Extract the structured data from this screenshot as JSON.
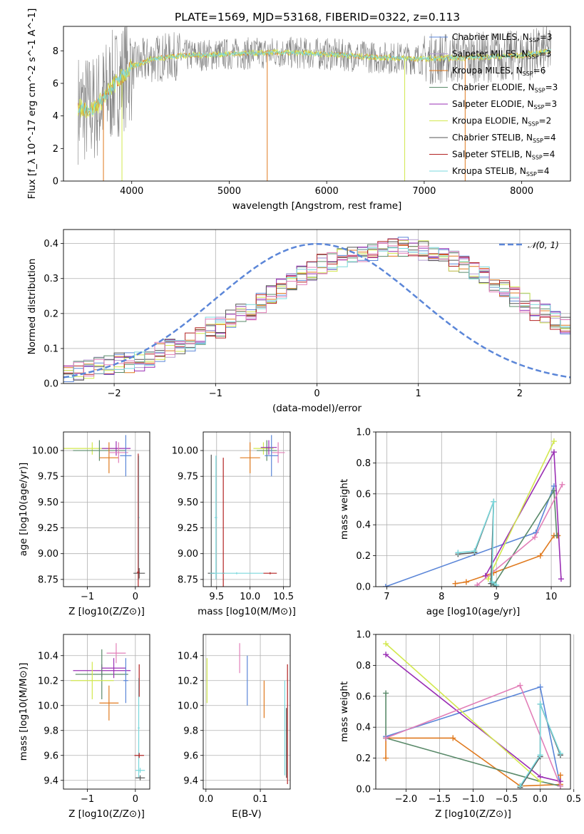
{
  "title": "PLATE=1569, MJD=53168, FIBERID=0322, z=0.113",
  "colors": {
    "chabrier_miles": "#5b86d8",
    "salpeter_miles": "#b59fd0",
    "kroupa_miles": "#e07a1f",
    "chabrier_elodie": "#5a8a6a",
    "salpeter_elodie": "#9a2fb4",
    "kroupa_elodie": "#d2e84e",
    "chabrier_stelib": "#555555",
    "salpeter_stelib": "#b22222",
    "kroupa_stelib": "#7ad8dc",
    "data": "#808080",
    "pink": "#e27fb8",
    "grid": "#b0b0b0"
  },
  "chart_data": [
    {
      "id": "spectrum",
      "type": "line",
      "title": "PLATE=1569, MJD=53168, FIBERID=0322, z=0.113",
      "xlabel": "wavelength [Angstrom, rest frame]",
      "ylabel": "Flux [f_λ 10^-17 erg cm^-2 s^-1 A^-1]",
      "xlim": [
        3300,
        8500
      ],
      "ylim": [
        0,
        9.5
      ],
      "xticks": [
        "4000",
        "5000",
        "6000",
        "7000",
        "8000"
      ],
      "yticks": [
        "0",
        "2",
        "4",
        "6",
        "8"
      ],
      "grid": false,
      "legend_position": "top-right",
      "legend": [
        "Chabrier MILES, N_SSP=3",
        "Salpeter MILES, N_SSP=3",
        "Kroupa MILES, N_SSP=6",
        "Chabrier ELODIE, N_SSP=3",
        "Salpeter ELODIE, N_SSP=3",
        "Kroupa ELODIE, N_SSP=2",
        "Chabrier STELIB, N_SSP=4",
        "Salpeter STELIB, N_SSP=4",
        "Kroupa STELIB, N_SSP=4"
      ],
      "data_series": {
        "x": [
          3450,
          3600,
          3700,
          3800,
          3900,
          4000,
          4200,
          4500,
          5000,
          5500,
          6000,
          6500,
          7000,
          7500,
          8000,
          8300
        ],
        "y": [
          4.5,
          4.4,
          5.0,
          5.8,
          6.4,
          7.0,
          7.5,
          7.7,
          7.8,
          7.9,
          7.8,
          7.6,
          7.5,
          7.6,
          7.7,
          8.0
        ]
      }
    },
    {
      "id": "residuals",
      "type": "histogram",
      "xlabel": "(data-model)/error",
      "ylabel": "Normed distribution",
      "xlim": [
        -2.5,
        2.5
      ],
      "ylim": [
        0,
        0.44
      ],
      "xticks": [
        "−2",
        "−1",
        "0",
        "1",
        "2"
      ],
      "yticks": [
        "0.0",
        "0.1",
        "0.2",
        "0.3",
        "0.4"
      ],
      "grid": true,
      "legend": [
        "𝒩(0, 1)"
      ],
      "legend_position": "top-right",
      "bin_edges_start": -2.5,
      "bin_width": 0.1,
      "base_histogram": [
        0.03,
        0.035,
        0.04,
        0.05,
        0.055,
        0.06,
        0.06,
        0.065,
        0.075,
        0.09,
        0.1,
        0.11,
        0.12,
        0.14,
        0.16,
        0.16,
        0.18,
        0.2,
        0.21,
        0.23,
        0.25,
        0.27,
        0.29,
        0.31,
        0.32,
        0.34,
        0.35,
        0.36,
        0.37,
        0.375,
        0.38,
        0.38,
        0.385,
        0.39,
        0.39,
        0.38,
        0.37,
        0.36,
        0.35,
        0.34,
        0.32,
        0.31,
        0.29,
        0.27,
        0.25,
        0.23,
        0.21,
        0.2,
        0.18,
        0.16,
        0.15
      ]
    },
    {
      "id": "age_vs_Z",
      "type": "scatter",
      "xlabel": "Z [log10(Z/Z⊙)]",
      "ylabel": "age [log10(age/yr)]",
      "xlim": [
        -1.5,
        0.3
      ],
      "ylim": [
        8.68,
        10.18
      ],
      "xticks": [
        "−1",
        "0"
      ],
      "yticks": [
        "8.75",
        "9.00",
        "9.25",
        "9.50",
        "9.75",
        "10.00"
      ],
      "grid": true,
      "points": [
        {
          "x": -0.9,
          "y": 10.02,
          "xerr": 0.6,
          "yerr": 0.06,
          "c": "kroupa_elodie"
        },
        {
          "x": -0.75,
          "y": 10.0,
          "xerr": 0.55,
          "yerr": 0.1,
          "c": "chabrier_elodie"
        },
        {
          "x": -0.4,
          "y": 10.02,
          "xerr": 0.3,
          "yerr": 0.07,
          "c": "salpeter_elodie"
        },
        {
          "x": -0.55,
          "y": 9.93,
          "xerr": 0.2,
          "yerr": 0.15,
          "c": "kroupa_miles"
        },
        {
          "x": -0.35,
          "y": 9.98,
          "xerr": 0.2,
          "yerr": 0.1,
          "c": "pink"
        },
        {
          "x": -0.2,
          "y": 9.95,
          "xerr": 0.12,
          "yerr": 0.2,
          "c": "chabrier_miles"
        },
        {
          "x": 0.07,
          "y": 9.35,
          "xerr": 0.02,
          "yerr": 0.6,
          "c": "kroupa_stelib"
        },
        {
          "x": 0.08,
          "y": 8.81,
          "xerr": 0.12,
          "yerr": 0.05,
          "c": "chabrier_stelib"
        },
        {
          "x": 0.06,
          "y": 8.82,
          "xerr": 0.03,
          "yerr": 1.15,
          "c": "salpeter_stelib"
        }
      ]
    },
    {
      "id": "age_vs_mass",
      "type": "scatter",
      "xlabel": "mass [log10(M/M⊙)]",
      "ylabel": "",
      "xlim": [
        9.3,
        10.6
      ],
      "ylim": [
        8.68,
        10.18
      ],
      "xticks": [
        "9.5",
        "10.0",
        "10.5"
      ],
      "yticks": [
        "8.75",
        "9.00",
        "9.25",
        "9.50",
        "9.75",
        "10.00"
      ],
      "grid": true,
      "points": [
        {
          "x": 10.2,
          "y": 10.02,
          "xerr": 0.15,
          "yerr": 0.06,
          "c": "kroupa_elodie"
        },
        {
          "x": 10.25,
          "y": 10.0,
          "xerr": 0.15,
          "yerr": 0.1,
          "c": "chabrier_elodie"
        },
        {
          "x": 10.28,
          "y": 10.03,
          "xerr": 0.12,
          "yerr": 0.07,
          "c": "salpeter_elodie"
        },
        {
          "x": 10.0,
          "y": 9.93,
          "xerr": 0.15,
          "yerr": 0.15,
          "c": "kroupa_miles"
        },
        {
          "x": 10.42,
          "y": 9.98,
          "xerr": 0.1,
          "yerr": 0.1,
          "c": "pink"
        },
        {
          "x": 10.32,
          "y": 9.95,
          "xerr": 0.1,
          "yerr": 0.2,
          "c": "chabrier_miles"
        },
        {
          "x": 9.49,
          "y": 9.35,
          "xerr": 0.02,
          "yerr": 0.6,
          "c": "kroupa_stelib"
        },
        {
          "x": 9.42,
          "y": 8.81,
          "xerr": 0.05,
          "yerr": 1.15,
          "c": "chabrier_stelib"
        },
        {
          "x": 9.6,
          "y": 8.81,
          "xerr": 0.02,
          "yerr": 1.12,
          "c": "salpeter_stelib"
        },
        {
          "x": 9.8,
          "y": 8.81,
          "xerr": 0.4,
          "yerr": 0.01,
          "c": "kroupa_stelib"
        },
        {
          "x": 10.3,
          "y": 8.81,
          "xerr": 0.1,
          "yerr": 0.01,
          "c": "salpeter_stelib"
        }
      ]
    },
    {
      "id": "weight_vs_age",
      "type": "line",
      "xlabel": "age [log10(age/yr)]",
      "ylabel": "mass weight",
      "xlim": [
        6.8,
        10.35
      ],
      "ylim": [
        0,
        1.0
      ],
      "xticks": [
        "7",
        "8",
        "9",
        "10"
      ],
      "yticks": [
        "0.0",
        "0.2",
        "0.4",
        "0.6",
        "0.8",
        "1.0"
      ],
      "grid": true,
      "series": [
        {
          "c": "chabrier_miles",
          "x": [
            6.98,
            9.72,
            10.05
          ],
          "y": [
            0.0,
            0.35,
            0.65
          ]
        },
        {
          "c": "kroupa_miles",
          "x": [
            8.25,
            8.45,
            8.95,
            9.8,
            10.05,
            10.12
          ],
          "y": [
            0.02,
            0.03,
            0.09,
            0.2,
            0.33,
            0.33
          ]
        },
        {
          "c": "chabrier_elodie",
          "x": [
            8.95,
            10.05,
            10.1
          ],
          "y": [
            0.01,
            0.62,
            0.33
          ]
        },
        {
          "c": "salpeter_elodie",
          "x": [
            8.8,
            10.05,
            10.18
          ],
          "y": [
            0.07,
            0.87,
            0.05
          ]
        },
        {
          "c": "kroupa_elodie",
          "x": [
            8.85,
            10.05
          ],
          "y": [
            0.05,
            0.94
          ]
        },
        {
          "c": "pink",
          "x": [
            8.65,
            9.7,
            10.2
          ],
          "y": [
            0.01,
            0.32,
            0.66
          ]
        },
        {
          "c": "chabrier_stelib",
          "x": [
            8.3,
            8.6,
            8.95,
            8.9,
            9.0
          ],
          "y": [
            0.21,
            0.22,
            0.55,
            0.02,
            0.0
          ]
        },
        {
          "c": "kroupa_stelib",
          "x": [
            8.3,
            8.6,
            8.95,
            8.92,
            9.0
          ],
          "y": [
            0.22,
            0.23,
            0.55,
            0.03,
            0.01
          ]
        }
      ]
    },
    {
      "id": "mass_vs_Z",
      "type": "scatter",
      "xlabel": "Z [log10(Z/Z⊙)]",
      "ylabel": "mass [log10(M/M⊙)]",
      "xlim": [
        -1.5,
        0.3
      ],
      "ylim": [
        9.33,
        10.57
      ],
      "xticks": [
        "−1",
        "0"
      ],
      "yticks": [
        "9.4",
        "9.6",
        "9.8",
        "10.0",
        "10.2",
        "10.4"
      ],
      "grid": true,
      "points": [
        {
          "x": -0.7,
          "y": 10.28,
          "xerr": 0.6,
          "yerr": 0.05,
          "c": "salpeter_elodie"
        },
        {
          "x": -0.7,
          "y": 10.25,
          "xerr": 0.55,
          "yerr": 0.2,
          "c": "chabrier_elodie"
        },
        {
          "x": -0.9,
          "y": 10.2,
          "xerr": 0.45,
          "yerr": 0.15,
          "c": "kroupa_elodie"
        },
        {
          "x": -0.4,
          "y": 10.42,
          "xerr": 0.2,
          "yerr": 0.08,
          "c": "pink"
        },
        {
          "x": -0.45,
          "y": 10.3,
          "xerr": 0.25,
          "yerr": 0.08,
          "c": "salpeter_elodie"
        },
        {
          "x": -0.55,
          "y": 10.02,
          "xerr": 0.2,
          "yerr": 0.14,
          "c": "kroupa_miles"
        },
        {
          "x": -0.2,
          "y": 10.2,
          "xerr": 0.05,
          "yerr": 0.18,
          "c": "chabrier_miles"
        },
        {
          "x": 0.07,
          "y": 9.82,
          "xerr": 0.02,
          "yerr": 0.4,
          "c": "kroupa_stelib"
        },
        {
          "x": 0.08,
          "y": 9.6,
          "xerr": 0.1,
          "yerr": 0.02,
          "c": "salpeter_stelib"
        },
        {
          "x": 0.1,
          "y": 9.48,
          "xerr": 0.1,
          "yerr": 0.02,
          "c": "kroupa_stelib"
        },
        {
          "x": 0.1,
          "y": 9.42,
          "xerr": 0.1,
          "yerr": 0.02,
          "c": "chabrier_stelib"
        },
        {
          "x": 0.08,
          "y": 10.2,
          "xerr": 0.0,
          "yerr": 0.13,
          "c": "salpeter_stelib"
        }
      ]
    },
    {
      "id": "mass_vs_ebv",
      "type": "scatter",
      "xlabel": "E(B-V)",
      "ylabel": "",
      "xlim": [
        -0.005,
        0.155
      ],
      "ylim": [
        9.33,
        10.57
      ],
      "xticks": [
        "0.0",
        "0.1"
      ],
      "yticks": [
        "9.4",
        "9.6",
        "9.8",
        "10.0",
        "10.2",
        "10.4"
      ],
      "grid": true,
      "points": [
        {
          "x": 0.002,
          "y": 10.2,
          "yerr": 0.18,
          "c": "kroupa_elodie"
        },
        {
          "x": 0.062,
          "y": 10.38,
          "yerr": 0.12,
          "c": "pink"
        },
        {
          "x": 0.076,
          "y": 10.2,
          "yerr": 0.2,
          "c": "chabrier_miles"
        },
        {
          "x": 0.107,
          "y": 10.05,
          "yerr": 0.15,
          "c": "kroupa_miles"
        },
        {
          "x": 0.145,
          "y": 9.82,
          "yerr": 0.38,
          "c": "kroupa_stelib"
        },
        {
          "x": 0.15,
          "y": 9.85,
          "yerr": 0.48,
          "c": "salpeter_stelib"
        },
        {
          "x": 0.148,
          "y": 9.7,
          "yerr": 0.28,
          "c": "chabrier_stelib"
        }
      ]
    },
    {
      "id": "weight_vs_Z",
      "type": "line",
      "xlabel": "Z [log10(Z/Z⊙)]",
      "ylabel": "mass weight",
      "xlim": [
        -2.45,
        0.45
      ],
      "ylim": [
        0,
        1.0
      ],
      "xticks": [
        "−2.0",
        "−1.5",
        "−1.0",
        "−0.5",
        "0.0",
        "0.5"
      ],
      "yticks": [
        "0.0",
        "0.2",
        "0.4",
        "0.6",
        "0.8",
        "1.0"
      ],
      "grid": true,
      "series": [
        {
          "c": "chabrier_miles",
          "x": [
            -2.3,
            0.0,
            0.3
          ],
          "y": [
            0.34,
            0.66,
            0.02
          ]
        },
        {
          "c": "kroupa_miles",
          "x": [
            -2.3,
            -2.3,
            -1.3,
            -0.3,
            0.3,
            0.3
          ],
          "y": [
            0.2,
            0.33,
            0.33,
            0.02,
            0.03,
            0.09
          ]
        },
        {
          "c": "chabrier_elodie",
          "x": [
            -2.3,
            -2.3,
            -2.3,
            0.0,
            0.3
          ],
          "y": [
            0.62,
            0.33,
            0.33,
            0.05,
            0.02
          ]
        },
        {
          "c": "salpeter_elodie",
          "x": [
            -2.3,
            0.0,
            0.3
          ],
          "y": [
            0.87,
            0.08,
            0.05
          ]
        },
        {
          "c": "kroupa_elodie",
          "x": [
            -2.3,
            0.0
          ],
          "y": [
            0.94,
            0.05
          ]
        },
        {
          "c": "pink",
          "x": [
            -2.3,
            -0.3,
            0.3
          ],
          "y": [
            0.33,
            0.67,
            0.02
          ]
        },
        {
          "c": "chabrier_stelib",
          "x": [
            -0.3,
            0.0,
            0.0,
            0.3
          ],
          "y": [
            0.01,
            0.21,
            0.55,
            0.22
          ]
        },
        {
          "c": "kroupa_stelib",
          "x": [
            -0.3,
            0.0,
            0.0,
            0.3
          ],
          "y": [
            0.02,
            0.22,
            0.55,
            0.23
          ]
        }
      ]
    }
  ]
}
